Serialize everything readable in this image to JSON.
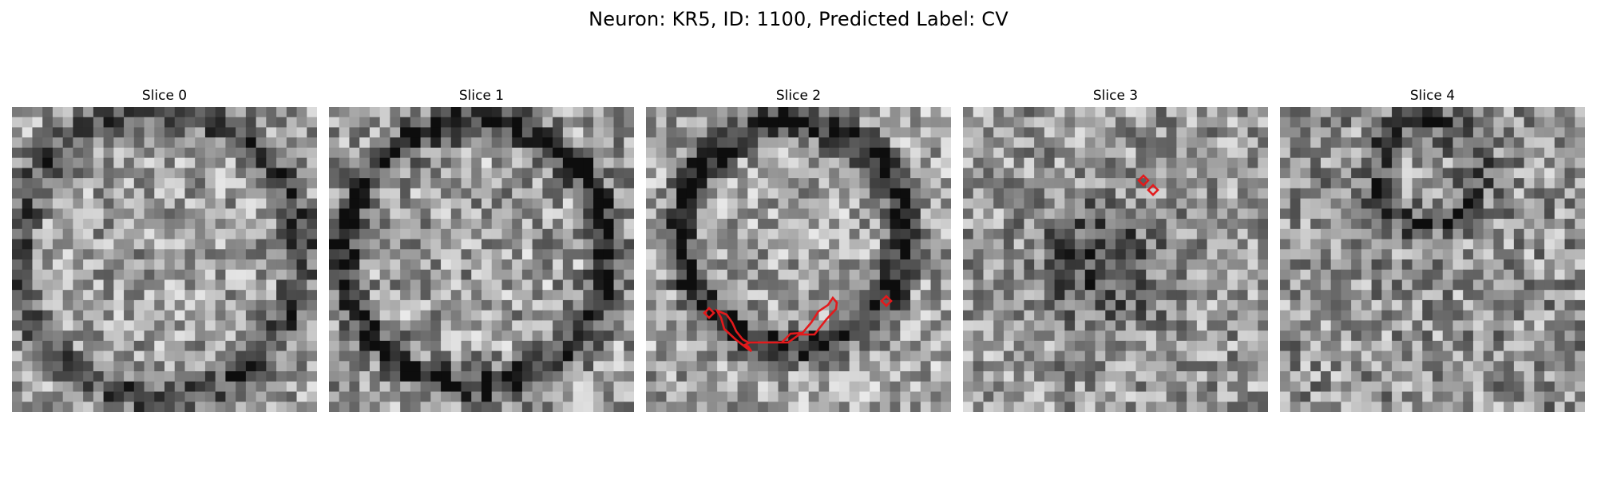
{
  "figure": {
    "title": "Neuron: KR5, ID: 1100, Predicted Label: CV"
  },
  "panels": [
    {
      "label": "Slice 0"
    },
    {
      "label": "Slice 1"
    },
    {
      "label": "Slice 2"
    },
    {
      "label": "Slice 3"
    },
    {
      "label": "Slice 4"
    }
  ],
  "colors": {
    "contour": "#e31a1c",
    "background": "#ffffff"
  }
}
